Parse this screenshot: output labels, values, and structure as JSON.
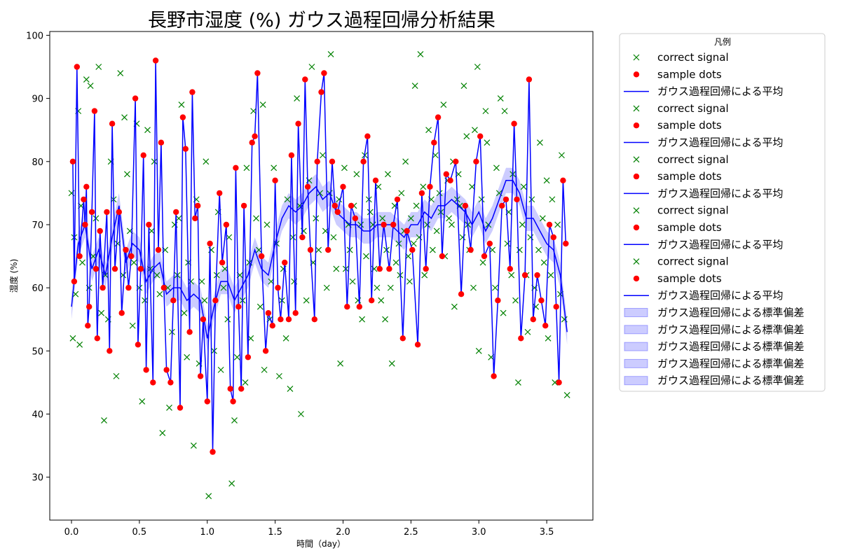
{
  "chart_data": {
    "type": "line",
    "title": "長野市湿度 (%) ガウス過程回帰分析結果",
    "xlabel": "時間（day）",
    "ylabel": "湿度 (%)",
    "xlim": [
      -0.16,
      3.84
    ],
    "ylim": [
      23.2,
      100.6
    ],
    "x_ticks": [
      0.0,
      0.5,
      1.0,
      1.5,
      2.0,
      2.5,
      3.0,
      3.5
    ],
    "x_tick_labels": [
      "0.0",
      "0.5",
      "1.0",
      "1.5",
      "2.0",
      "2.5",
      "3.0",
      "3.5"
    ],
    "y_ticks": [
      30,
      40,
      50,
      60,
      70,
      80,
      90,
      100
    ],
    "y_tick_labels": [
      "30",
      "40",
      "50",
      "60",
      "70",
      "80",
      "90",
      "100"
    ],
    "grid": false,
    "legend": {
      "title": "凡例",
      "placement": "outside-top-right",
      "entries": [
        "correct signal",
        "sample dots",
        "ガウス過程回帰による平均",
        "correct signal",
        "sample dots",
        "ガウス過程回帰による平均",
        "correct signal",
        "sample dots",
        "ガウス過程回帰による平均",
        "correct signal",
        "sample dots",
        "ガウス過程回帰による平均",
        "correct signal",
        "sample dots",
        "ガウス過程回帰による平均",
        "ガウス過程回帰による標準偏差",
        "ガウス過程回帰による標準偏差",
        "ガウス過程回帰による標準偏差",
        "ガウス過程回帰による標準偏差",
        "ガウス過程回帰による標準偏差"
      ]
    },
    "colors": {
      "correct_signal": "#008000",
      "sample_dots": "#ff0000",
      "mean": "#0000ff",
      "std_fill": "#0000ff"
    },
    "series": [
      {
        "name": "sample dots",
        "marker": "circle",
        "x": [
          0.01,
          0.02,
          0.04,
          0.06,
          0.09,
          0.1,
          0.11,
          0.12,
          0.13,
          0.15,
          0.17,
          0.18,
          0.19,
          0.21,
          0.23,
          0.26,
          0.28,
          0.3,
          0.32,
          0.35,
          0.37,
          0.4,
          0.42,
          0.44,
          0.47,
          0.49,
          0.51,
          0.53,
          0.55,
          0.57,
          0.6,
          0.62,
          0.64,
          0.66,
          0.68,
          0.7,
          0.73,
          0.75,
          0.77,
          0.8,
          0.82,
          0.84,
          0.87,
          0.89,
          0.91,
          0.93,
          0.95,
          0.97,
          1.0,
          1.02,
          1.04,
          1.06,
          1.09,
          1.11,
          1.14,
          1.17,
          1.19,
          1.21,
          1.23,
          1.25,
          1.27,
          1.3,
          1.33,
          1.35,
          1.37,
          1.4,
          1.43,
          1.45,
          1.48,
          1.5,
          1.52,
          1.54,
          1.57,
          1.6,
          1.62,
          1.65,
          1.67,
          1.7,
          1.72,
          1.74,
          1.76,
          1.79,
          1.81,
          1.84,
          1.86,
          1.89,
          1.92,
          1.94,
          1.96,
          2.0,
          2.03,
          2.06,
          2.09,
          2.12,
          2.15,
          2.18,
          2.21,
          2.24,
          2.27,
          2.3,
          2.34,
          2.37,
          2.4,
          2.44,
          2.47,
          2.51,
          2.55,
          2.58,
          2.61,
          2.64,
          2.67,
          2.7,
          2.73,
          2.76,
          2.79,
          2.83,
          2.87,
          2.9,
          2.94,
          2.98,
          3.01,
          3.04,
          3.08,
          3.11,
          3.14,
          3.17,
          3.2,
          3.23,
          3.26,
          3.28,
          3.31,
          3.34,
          3.37,
          3.4,
          3.43,
          3.46,
          3.49,
          3.52,
          3.55,
          3.57,
          3.59,
          3.62,
          3.64
        ],
        "y": [
          80,
          61,
          95,
          65,
          74,
          70,
          76,
          54,
          57,
          72,
          88,
          63,
          52,
          69,
          60,
          72,
          50,
          86,
          63,
          72,
          56,
          66,
          60,
          65,
          90,
          51,
          63,
          81,
          47,
          70,
          45,
          96,
          66,
          83,
          60,
          47,
          45,
          58,
          72,
          41,
          87,
          82,
          53,
          91,
          71,
          73,
          46,
          55,
          42,
          67,
          34,
          58,
          75,
          64,
          70,
          44,
          42,
          79,
          57,
          44,
          73,
          49,
          83,
          84,
          94,
          65,
          50,
          56,
          54,
          77,
          60,
          55,
          64,
          55,
          81,
          56,
          86,
          68,
          93,
          76,
          66,
          55,
          80,
          91,
          94,
          66,
          80,
          73,
          72,
          76,
          57,
          73,
          71,
          57,
          80,
          84,
          58,
          77,
          63,
          70,
          63,
          70,
          74,
          52,
          69,
          66,
          51,
          75,
          63,
          76,
          83,
          87,
          65,
          78,
          77,
          80,
          59,
          73,
          66,
          80,
          84,
          65,
          67,
          46,
          58,
          73,
          74,
          63,
          86,
          74,
          52,
          62,
          93,
          55,
          62,
          58,
          54,
          70,
          68,
          57,
          45,
          77,
          67
        ]
      },
      {
        "name": "correct signal",
        "marker": "x",
        "x": [
          0.0,
          0.01,
          0.02,
          0.03,
          0.05,
          0.06,
          0.07,
          0.08,
          0.11,
          0.13,
          0.14,
          0.16,
          0.18,
          0.2,
          0.22,
          0.24,
          0.25,
          0.27,
          0.29,
          0.31,
          0.33,
          0.34,
          0.36,
          0.38,
          0.39,
          0.41,
          0.43,
          0.45,
          0.46,
          0.48,
          0.5,
          0.52,
          0.54,
          0.56,
          0.58,
          0.59,
          0.61,
          0.63,
          0.65,
          0.67,
          0.69,
          0.71,
          0.72,
          0.74,
          0.76,
          0.78,
          0.79,
          0.81,
          0.83,
          0.85,
          0.86,
          0.88,
          0.9,
          0.92,
          0.94,
          0.96,
          0.98,
          0.99,
          1.01,
          1.03,
          1.05,
          1.07,
          1.08,
          1.1,
          1.12,
          1.13,
          1.15,
          1.16,
          1.18,
          1.2,
          1.22,
          1.24,
          1.26,
          1.28,
          1.29,
          1.31,
          1.32,
          1.34,
          1.36,
          1.38,
          1.39,
          1.41,
          1.42,
          1.44,
          1.46,
          1.47,
          1.49,
          1.51,
          1.53,
          1.55,
          1.56,
          1.58,
          1.59,
          1.61,
          1.63,
          1.64,
          1.66,
          1.68,
          1.69,
          1.71,
          1.73,
          1.75,
          1.77,
          1.78,
          1.8,
          1.82,
          1.83,
          1.85,
          1.87,
          1.88,
          1.9,
          1.91,
          1.93,
          1.95,
          1.97,
          1.98,
          2.01,
          2.02,
          2.04,
          2.05,
          2.07,
          2.08,
          2.1,
          2.11,
          2.13,
          2.14,
          2.16,
          2.17,
          2.19,
          2.2,
          2.22,
          2.23,
          2.25,
          2.26,
          2.28,
          2.29,
          2.31,
          2.32,
          2.33,
          2.35,
          2.36,
          2.38,
          2.39,
          2.41,
          2.42,
          2.43,
          2.45,
          2.46,
          2.48,
          2.49,
          2.5,
          2.52,
          2.53,
          2.54,
          2.56,
          2.57,
          2.59,
          2.6,
          2.62,
          2.63,
          2.65,
          2.66,
          2.68,
          2.69,
          2.71,
          2.72,
          2.74,
          2.75,
          2.77,
          2.78,
          2.8,
          2.81,
          2.82,
          2.84,
          2.85,
          2.86,
          2.88,
          2.89,
          2.91,
          2.92,
          2.93,
          2.95,
          2.96,
          2.97,
          2.99,
          3.0,
          3.02,
          3.03,
          3.05,
          3.06,
          3.07,
          3.09,
          3.1,
          3.12,
          3.13,
          3.15,
          3.16,
          3.18,
          3.19,
          3.21,
          3.22,
          3.24,
          3.25,
          3.27,
          3.29,
          3.3,
          3.32,
          3.33,
          3.35,
          3.36,
          3.38,
          3.39,
          3.41,
          3.42,
          3.44,
          3.45,
          3.47,
          3.48,
          3.5,
          3.51,
          3.53,
          3.54,
          3.56,
          3.58,
          3.6,
          3.61,
          3.63,
          3.65
        ],
        "y": [
          75,
          52,
          68,
          59,
          88,
          51,
          73,
          64,
          93,
          60,
          92,
          65,
          71,
          95,
          56,
          39,
          62,
          55,
          80,
          74,
          46,
          67,
          94,
          62,
          87,
          78,
          69,
          54,
          64,
          86,
          60,
          42,
          58,
          85,
          63,
          69,
          80,
          62,
          59,
          37,
          66,
          60,
          41,
          53,
          70,
          62,
          71,
          89,
          56,
          49,
          64,
          61,
          35,
          74,
          48,
          61,
          58,
          80,
          27,
          66,
          50,
          62,
          72,
          47,
          60,
          63,
          55,
          68,
          29,
          39,
          49,
          62,
          58,
          45,
          79,
          64,
          52,
          88,
          71,
          66,
          57,
          89,
          47,
          70,
          55,
          61,
          79,
          67,
          46,
          58,
          63,
          52,
          74,
          44,
          68,
          61,
          90,
          73,
          40,
          69,
          58,
          77,
          95,
          64,
          71,
          66,
          75,
          81,
          69,
          60,
          75,
          97,
          68,
          63,
          74,
          48,
          79,
          63,
          70,
          66,
          61,
          73,
          78,
          58,
          70,
          55,
          81,
          65,
          74,
          72,
          70,
          63,
          60,
          76,
          58,
          71,
          55,
          66,
          78,
          60,
          48,
          73,
          64,
          67,
          62,
          75,
          69,
          80,
          65,
          61,
          71,
          67,
          92,
          73,
          68,
          97,
          76,
          62,
          70,
          85,
          74,
          66,
          81,
          69,
          75,
          72,
          89,
          65,
          77,
          71,
          70,
          80,
          57,
          74,
          78,
          73,
          68,
          92,
          84,
          70,
          66,
          76,
          60,
          85,
          95,
          50,
          74,
          64,
          88,
          83,
          70,
          49,
          66,
          60,
          79,
          75,
          90,
          56,
          88,
          67,
          72,
          62,
          78,
          58,
          45,
          66,
          70,
          76,
          62,
          53,
          68,
          74,
          60,
          57,
          66,
          83,
          71,
          64,
          77,
          52,
          62,
          74,
          45,
          70,
          59,
          81,
          55,
          43
        ]
      },
      {
        "name": "ガウス過程回帰による平均",
        "line": true,
        "x": [
          0.0,
          0.05,
          0.1,
          0.15,
          0.2,
          0.25,
          0.3,
          0.35,
          0.4,
          0.45,
          0.5,
          0.55,
          0.6,
          0.65,
          0.7,
          0.75,
          0.8,
          0.85,
          0.9,
          0.95,
          1.0,
          1.05,
          1.1,
          1.15,
          1.2,
          1.25,
          1.3,
          1.35,
          1.4,
          1.45,
          1.5,
          1.55,
          1.6,
          1.65,
          1.7,
          1.75,
          1.8,
          1.85,
          1.9,
          1.95,
          2.0,
          2.05,
          2.1,
          2.15,
          2.2,
          2.25,
          2.3,
          2.35,
          2.4,
          2.45,
          2.5,
          2.55,
          2.6,
          2.65,
          2.7,
          2.75,
          2.8,
          2.85,
          2.9,
          2.95,
          3.0,
          3.05,
          3.1,
          3.15,
          3.2,
          3.25,
          3.3,
          3.35,
          3.4,
          3.45,
          3.5,
          3.55,
          3.6,
          3.65
        ],
        "y": [
          57,
          67,
          70,
          63,
          66,
          62,
          68,
          73,
          64,
          67,
          66,
          61,
          63,
          64,
          59,
          60,
          60,
          58,
          59,
          58,
          52,
          57,
          61,
          61,
          58,
          60,
          62,
          66,
          63,
          62,
          67,
          71,
          73,
          72,
          73,
          75,
          76,
          74,
          75,
          72,
          71,
          70,
          70,
          69,
          69,
          70,
          70,
          70,
          69,
          68,
          70,
          70,
          72,
          71,
          73,
          73,
          74,
          73,
          72,
          70,
          72,
          69,
          71,
          74,
          77,
          77,
          75,
          71,
          71,
          69,
          67,
          66,
          62,
          53
        ]
      }
    ],
    "std_band": {
      "name": "ガウス過程回帰による標準偏差",
      "x": [
        0.0,
        0.05,
        0.1,
        0.15,
        0.2,
        0.25,
        0.3,
        0.35,
        0.4,
        0.45,
        0.5,
        0.55,
        0.6,
        0.65,
        0.7,
        0.75,
        0.8,
        0.85,
        0.9,
        0.95,
        1.0,
        1.05,
        1.1,
        1.15,
        1.2,
        1.25,
        1.3,
        1.35,
        1.4,
        1.45,
        1.5,
        1.55,
        1.6,
        1.65,
        1.7,
        1.75,
        1.8,
        1.85,
        1.9,
        1.95,
        2.0,
        2.05,
        2.1,
        2.15,
        2.2,
        2.25,
        2.3,
        2.35,
        2.4,
        2.45,
        2.5,
        2.55,
        2.6,
        2.65,
        2.7,
        2.75,
        2.8,
        2.85,
        2.9,
        2.95,
        3.0,
        3.05,
        3.1,
        3.15,
        3.2,
        3.25,
        3.3,
        3.35,
        3.4,
        3.45,
        3.5,
        3.55,
        3.6,
        3.65
      ],
      "lower": [
        55,
        65,
        68,
        61,
        64,
        60,
        66,
        71,
        62,
        65,
        64,
        59,
        61,
        62,
        57,
        58,
        58,
        56,
        57,
        56,
        50,
        55,
        59,
        59,
        56,
        58,
        60,
        64,
        61,
        60,
        65,
        69,
        71,
        70,
        71,
        73,
        74,
        72,
        73,
        70,
        69,
        68,
        68,
        67,
        67,
        68,
        68,
        68,
        67,
        66,
        68,
        68,
        70,
        69,
        71,
        71,
        72,
        71,
        70,
        68,
        70,
        67,
        69,
        72,
        75,
        75,
        73,
        69,
        69,
        67,
        65,
        64,
        60,
        51
      ],
      "upper": [
        59,
        69,
        72,
        65,
        68,
        64,
        70,
        75,
        66,
        69,
        68,
        63,
        65,
        66,
        61,
        62,
        62,
        60,
        61,
        60,
        54,
        59,
        63,
        63,
        60,
        62,
        64,
        68,
        65,
        64,
        69,
        73,
        75,
        74,
        75,
        77,
        78,
        76,
        77,
        74,
        73,
        72,
        72,
        71,
        71,
        72,
        72,
        72,
        71,
        70,
        72,
        72,
        74,
        73,
        75,
        75,
        76,
        75,
        74,
        72,
        74,
        71,
        73,
        76,
        79,
        79,
        77,
        73,
        73,
        71,
        69,
        68,
        64,
        55
      ]
    }
  }
}
